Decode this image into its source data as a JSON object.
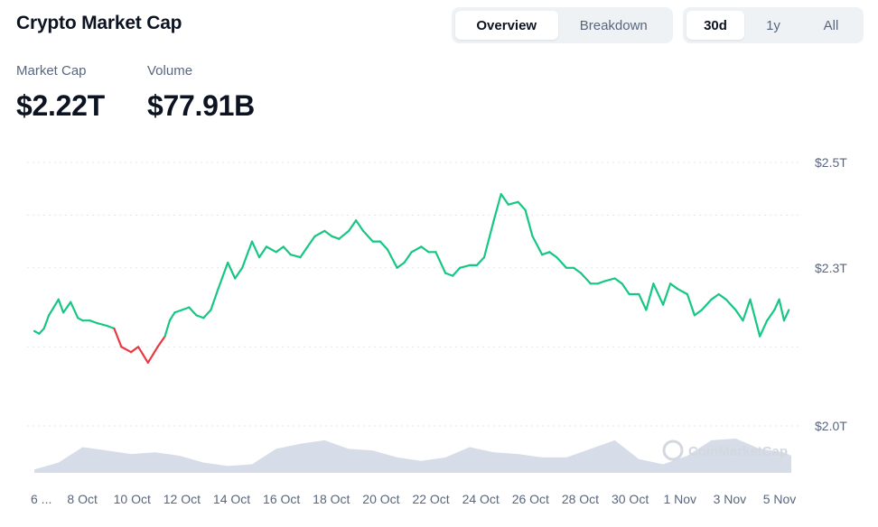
{
  "header": {
    "title": "Crypto Market Cap"
  },
  "view_tabs": [
    {
      "label": "Overview",
      "active": true
    },
    {
      "label": "Breakdown",
      "active": false
    }
  ],
  "range_tabs": [
    {
      "label": "30d",
      "active": true
    },
    {
      "label": "1y",
      "active": false
    },
    {
      "label": "All",
      "active": false
    }
  ],
  "stats": {
    "market_cap_label": "Market Cap",
    "market_cap_value": "$2.22T",
    "volume_label": "Volume",
    "volume_value": "$77.91B"
  },
  "watermark": "CoinMarketCap",
  "colors": {
    "up": "#16c784",
    "down": "#ea3943",
    "volume": "#cfd6e4",
    "grid": "#e3e7ee"
  },
  "chart_data": {
    "type": "line",
    "title": "",
    "xlabel": "",
    "ylabel": "",
    "x_tick_labels": [
      "6 ...",
      "8 Oct",
      "10 Oct",
      "12 Oct",
      "14 Oct",
      "16 Oct",
      "18 Oct",
      "20 Oct",
      "22 Oct",
      "24 Oct",
      "26 Oct",
      "28 Oct",
      "30 Oct",
      "1 Nov",
      "3 Nov",
      "5 Nov"
    ],
    "y_tick_labels": [
      "$2.5T",
      "$2.3T",
      "$2.0T"
    ],
    "y_ticks": [
      2.5,
      2.3,
      2.0
    ],
    "ylim": [
      2.0,
      2.5
    ],
    "xlim": [
      0,
      31.3
    ],
    "grid": true,
    "series": [
      {
        "x": [
          0,
          0.2,
          0.4,
          0.6,
          1.0,
          1.2,
          1.5,
          1.8,
          2.0,
          2.3,
          2.6,
          3.0,
          3.3,
          3.6,
          4.0,
          4.3,
          4.5,
          4.7,
          4.9,
          5.1,
          5.4,
          5.6,
          5.8,
          6.1,
          6.4,
          6.7,
          7.0,
          7.3,
          7.6,
          8.0,
          8.3,
          8.6,
          9.0,
          9.3,
          9.6,
          10.0,
          10.3,
          10.6,
          11.0,
          11.3,
          11.6,
          12.0,
          12.3,
          12.6,
          13.0,
          13.3,
          13.6,
          14.0,
          14.3,
          14.6,
          15.0,
          15.3,
          15.6,
          16.0,
          16.3,
          16.6,
          17.0,
          17.3,
          17.6,
          18.0,
          18.3,
          18.6,
          19.0,
          19.3,
          19.6,
          20.0,
          20.3,
          20.6,
          21.0,
          21.3,
          21.6,
          22.0,
          22.3,
          22.6,
          23.0,
          23.3,
          23.6,
          24.0,
          24.3,
          24.6,
          25.0,
          25.3,
          25.6,
          26.0,
          26.3,
          26.6,
          27.0,
          27.3,
          27.6,
          28.0,
          28.3,
          28.6,
          29.0,
          29.3,
          29.6,
          30.0,
          30.3,
          30.6,
          30.8,
          31.0,
          31.2
        ],
        "y": [
          2.18,
          2.175,
          2.185,
          2.21,
          2.24,
          2.215,
          2.235,
          2.205,
          2.2,
          2.2,
          2.195,
          2.19,
          2.185,
          2.15,
          2.14,
          2.15,
          2.135,
          2.12,
          2.135,
          2.15,
          2.17,
          2.2,
          2.215,
          2.22,
          2.225,
          2.21,
          2.205,
          2.22,
          2.26,
          2.31,
          2.28,
          2.3,
          2.35,
          2.32,
          2.34,
          2.33,
          2.34,
          2.325,
          2.32,
          2.34,
          2.36,
          2.37,
          2.36,
          2.355,
          2.37,
          2.39,
          2.37,
          2.35,
          2.35,
          2.335,
          2.3,
          2.31,
          2.33,
          2.34,
          2.33,
          2.33,
          2.29,
          2.285,
          2.3,
          2.305,
          2.305,
          2.32,
          2.39,
          2.44,
          2.42,
          2.425,
          2.41,
          2.36,
          2.325,
          2.33,
          2.32,
          2.3,
          2.3,
          2.29,
          2.27,
          2.27,
          2.275,
          2.28,
          2.27,
          2.25,
          2.25,
          2.22,
          2.27,
          2.23,
          2.27,
          2.26,
          2.25,
          2.21,
          2.22,
          2.24,
          2.25,
          2.24,
          2.22,
          2.2,
          2.24,
          2.17,
          2.2,
          2.22,
          2.24,
          2.2,
          2.22
        ]
      },
      {
        "name": "Volume",
        "x": [
          0,
          1,
          2,
          3,
          4,
          5,
          6,
          7,
          8,
          9,
          10,
          11,
          12,
          13,
          14,
          15,
          16,
          17,
          18,
          19,
          20,
          21,
          22,
          23,
          24,
          25,
          26,
          27,
          28,
          29,
          30,
          31,
          31.3
        ],
        "y": [
          0.1,
          0.3,
          0.75,
          0.65,
          0.55,
          0.6,
          0.5,
          0.3,
          0.2,
          0.25,
          0.7,
          0.85,
          0.95,
          0.7,
          0.65,
          0.45,
          0.35,
          0.45,
          0.75,
          0.6,
          0.55,
          0.45,
          0.45,
          0.7,
          0.95,
          0.4,
          0.25,
          0.5,
          0.95,
          1.0,
          0.7,
          0.6,
          0.5
        ]
      }
    ]
  }
}
